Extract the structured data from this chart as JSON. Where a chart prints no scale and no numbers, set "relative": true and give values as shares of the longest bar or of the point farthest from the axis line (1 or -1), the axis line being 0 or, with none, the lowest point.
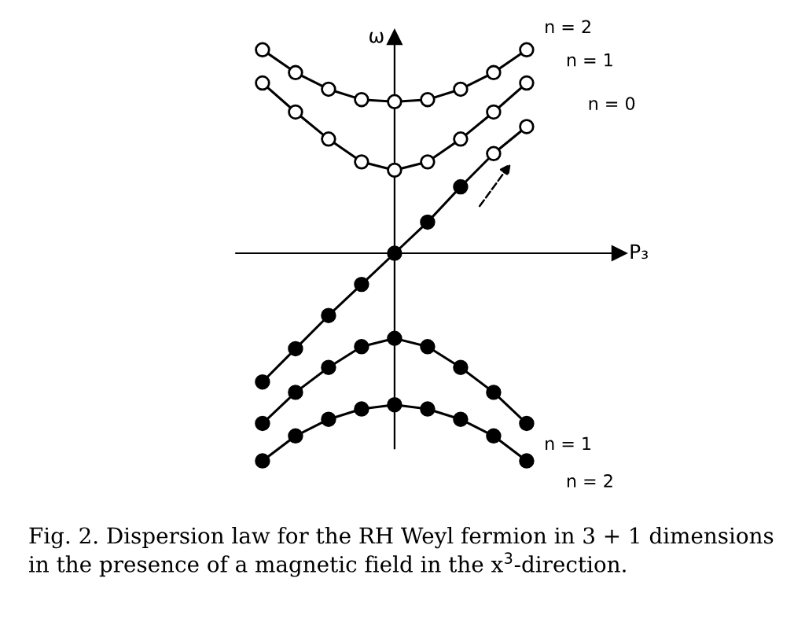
{
  "chart_data": {
    "type": "line",
    "relative": true,
    "xlabel": "P₃",
    "ylabel": "ω",
    "legend": false,
    "marker": "circle",
    "line_style": "solid",
    "categories": [
      null,
      null,
      null,
      null,
      null,
      null,
      null,
      null,
      null
    ],
    "series": [
      {
        "name": "n = 2",
        "color": "#000000",
        "colors": [
          "#ffffff",
          "#ffffff",
          "#ffffff",
          "#ffffff",
          "#ffffff",
          "#ffffff",
          "#ffffff",
          "#ffffff",
          "#ffffff"
        ],
        "values": [
          0.98,
          0.87,
          0.79,
          0.74,
          0.73,
          0.74,
          0.79,
          0.87,
          0.98
        ]
      },
      {
        "name": "n = 1",
        "color": "#000000",
        "colors": [
          "#ffffff",
          "#ffffff",
          "#ffffff",
          "#ffffff",
          "#ffffff",
          "#ffffff",
          "#ffffff",
          "#ffffff",
          "#ffffff"
        ],
        "values": [
          0.82,
          0.68,
          0.55,
          0.44,
          0.4,
          0.44,
          0.55,
          0.68,
          0.82
        ]
      },
      {
        "name": "n = 0",
        "color": "#000000",
        "colors": [
          "#000000",
          "#000000",
          "#000000",
          "#000000",
          "#000000",
          "#000000",
          "#000000",
          "#ffffff",
          "#ffffff"
        ],
        "values": [
          -0.62,
          -0.46,
          -0.3,
          -0.15,
          0,
          0.15,
          0.32,
          0.48,
          0.61
        ]
      },
      {
        "name": "n = 1",
        "color": "#000000",
        "colors": [
          "#000000",
          "#000000",
          "#000000",
          "#000000",
          "#000000",
          "#000000",
          "#000000",
          "#000000",
          "#000000"
        ],
        "values": [
          -0.82,
          -0.67,
          -0.55,
          -0.45,
          -0.41,
          -0.45,
          -0.55,
          -0.67,
          -0.82
        ]
      },
      {
        "name": "n = 2",
        "color": "#000000",
        "colors": [
          "#000000",
          "#000000",
          "#000000",
          "#000000",
          "#000000",
          "#000000",
          "#000000",
          "#000000",
          "#000000"
        ],
        "values": [
          -1,
          -0.88,
          -0.8,
          -0.75,
          -0.73,
          -0.75,
          -0.8,
          -0.88,
          -1
        ]
      }
    ],
    "annotations": [
      "Fig. 2. Dispersion law for the RH Weyl fermion in 3 + 1 dimensions in the presence of a magnetic field in the x$^{3}$-direction."
    ]
  }
}
